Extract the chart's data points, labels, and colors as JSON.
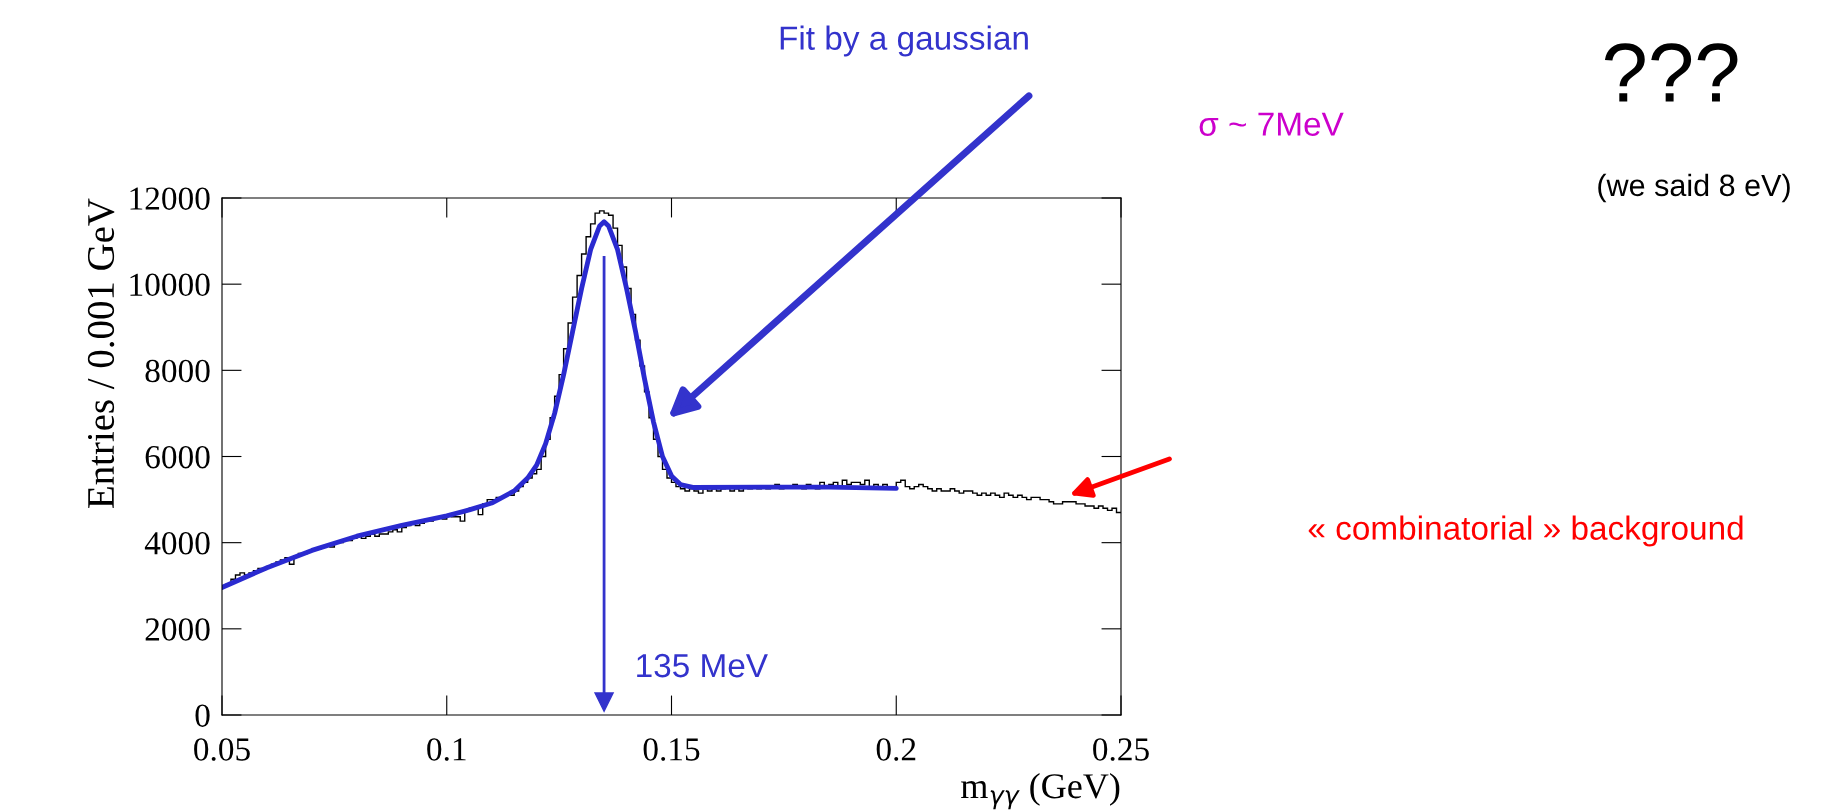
{
  "chart_data": {
    "type": "histogram",
    "xlabel": "m$_{γγ}$ (GeV)",
    "ylabel": "Entries / 0.001 GeV",
    "xlim": [
      0.05,
      0.25
    ],
    "xticks": [
      0.05,
      0.1,
      0.15,
      0.2,
      0.25
    ],
    "ylim": [
      0,
      12000
    ],
    "yticks": [
      0,
      2000,
      4000,
      6000,
      8000,
      10000,
      12000
    ],
    "grid": false,
    "legend": false,
    "color": "#000000",
    "bins": [
      0.05,
      0.051,
      0.052,
      0.053,
      0.054,
      0.055,
      0.056,
      0.057,
      0.058,
      0.059,
      0.06,
      0.061,
      0.062,
      0.063,
      0.064,
      0.065,
      0.066,
      0.067,
      0.068,
      0.069,
      0.07,
      0.071,
      0.072,
      0.073,
      0.074,
      0.075,
      0.076,
      0.077,
      0.078,
      0.079,
      0.08,
      0.081,
      0.082,
      0.083,
      0.084,
      0.085,
      0.086,
      0.087,
      0.088,
      0.089,
      0.09,
      0.091,
      0.092,
      0.093,
      0.094,
      0.095,
      0.096,
      0.097,
      0.098,
      0.099,
      0.1,
      0.101,
      0.102,
      0.103,
      0.104,
      0.105,
      0.106,
      0.107,
      0.108,
      0.109,
      0.11,
      0.111,
      0.112,
      0.113,
      0.114,
      0.115,
      0.116,
      0.117,
      0.118,
      0.119,
      0.12,
      0.121,
      0.122,
      0.123,
      0.124,
      0.125,
      0.126,
      0.127,
      0.128,
      0.129,
      0.13,
      0.131,
      0.132,
      0.133,
      0.134,
      0.135,
      0.136,
      0.137,
      0.138,
      0.139,
      0.14,
      0.141,
      0.142,
      0.143,
      0.144,
      0.145,
      0.146,
      0.147,
      0.148,
      0.149,
      0.15,
      0.151,
      0.152,
      0.153,
      0.154,
      0.155,
      0.156,
      0.157,
      0.158,
      0.159,
      0.16,
      0.161,
      0.162,
      0.163,
      0.164,
      0.165,
      0.166,
      0.167,
      0.168,
      0.169,
      0.17,
      0.171,
      0.172,
      0.173,
      0.174,
      0.175,
      0.176,
      0.177,
      0.178,
      0.179,
      0.18,
      0.181,
      0.182,
      0.183,
      0.184,
      0.185,
      0.186,
      0.187,
      0.188,
      0.189,
      0.19,
      0.191,
      0.192,
      0.193,
      0.194,
      0.195,
      0.196,
      0.197,
      0.198,
      0.199,
      0.2,
      0.201,
      0.202,
      0.203,
      0.204,
      0.205,
      0.206,
      0.207,
      0.208,
      0.209,
      0.21,
      0.211,
      0.212,
      0.213,
      0.214,
      0.215,
      0.216,
      0.217,
      0.218,
      0.219,
      0.22,
      0.221,
      0.222,
      0.223,
      0.224,
      0.225,
      0.226,
      0.227,
      0.228,
      0.229,
      0.23,
      0.231,
      0.232,
      0.233,
      0.234,
      0.235,
      0.236,
      0.237,
      0.238,
      0.239,
      0.24,
      0.241,
      0.242,
      0.243,
      0.244,
      0.245,
      0.246,
      0.247,
      0.248,
      0.249,
      0.25
    ],
    "values": [
      3000,
      3050,
      3150,
      3250,
      3300,
      3250,
      3300,
      3350,
      3400,
      3400,
      3450,
      3500,
      3550,
      3600,
      3650,
      3500,
      3700,
      3750,
      3750,
      3800,
      3850,
      3850,
      3900,
      3950,
      3900,
      4000,
      4000,
      4050,
      4050,
      4100,
      4150,
      4100,
      4150,
      4200,
      4150,
      4200,
      4200,
      4250,
      4300,
      4250,
      4350,
      4400,
      4450,
      4400,
      4450,
      4500,
      4500,
      4550,
      4600,
      4550,
      4650,
      4600,
      4600,
      4500,
      4750,
      4800,
      4800,
      4650,
      4900,
      5000,
      5000,
      5050,
      5050,
      5100,
      5100,
      5200,
      5300,
      5400,
      5500,
      5600,
      5700,
      6000,
      6400,
      6900,
      7400,
      7900,
      8500,
      9100,
      9700,
      10200,
      10700,
      11100,
      11400,
      11650,
      11700,
      11650,
      11600,
      11300,
      10900,
      10400,
      9900,
      9300,
      8700,
      8100,
      7500,
      6900,
      6400,
      6000,
      5700,
      5500,
      5400,
      5300,
      5250,
      5200,
      5250,
      5200,
      5150,
      5250,
      5200,
      5250,
      5200,
      5250,
      5300,
      5200,
      5250,
      5200,
      5300,
      5250,
      5300,
      5250,
      5300,
      5250,
      5300,
      5350,
      5250,
      5300,
      5300,
      5350,
      5300,
      5250,
      5350,
      5300,
      5250,
      5400,
      5300,
      5350,
      5400,
      5300,
      5450,
      5350,
      5400,
      5400,
      5350,
      5450,
      5300,
      5350,
      5300,
      5350,
      5300,
      5250,
      5400,
      5450,
      5300,
      5250,
      5300,
      5350,
      5300,
      5250,
      5200,
      5250,
      5200,
      5200,
      5250,
      5200,
      5150,
      5200,
      5200,
      5150,
      5100,
      5150,
      5100,
      5150,
      5100,
      5050,
      5150,
      5100,
      5050,
      5100,
      5050,
      5000,
      5050,
      5050,
      5000,
      5000,
      4950,
      4900,
      4900,
      4950,
      4950,
      4950,
      4900,
      4900,
      4850,
      4850,
      4800,
      4850,
      4800,
      4750,
      4800,
      4700
    ],
    "series": [
      {
        "type": "line",
        "color": "#2a2ad0",
        "x": [
          0.05,
          0.06,
          0.07,
          0.08,
          0.09,
          0.1,
          0.105,
          0.11,
          0.115,
          0.118,
          0.12,
          0.122,
          0.124,
          0.126,
          0.128,
          0.13,
          0.132,
          0.134,
          0.135,
          0.136,
          0.138,
          0.14,
          0.142,
          0.144,
          0.146,
          0.148,
          0.15,
          0.152,
          0.155,
          0.17,
          0.185,
          0.2
        ],
        "values": [
          2960,
          3420,
          3820,
          4150,
          4400,
          4620,
          4760,
          4920,
          5200,
          5500,
          5800,
          6300,
          7000,
          7900,
          8900,
          9900,
          10800,
          11350,
          11450,
          11350,
          10800,
          9900,
          8900,
          7800,
          6800,
          6000,
          5550,
          5350,
          5280,
          5290,
          5290,
          5260
        ]
      }
    ],
    "annotations": [
      "Fit by a gaussian",
      "σ ~ 7MeV",
      "???",
      "(we said 8 eV)",
      "« combinatorial » background"
    ],
    "ref_lines": [
      {
        "axis": "x",
        "value": 0.135,
        "label": "135 MeV",
        "color": "#3333cc"
      }
    ]
  }
}
